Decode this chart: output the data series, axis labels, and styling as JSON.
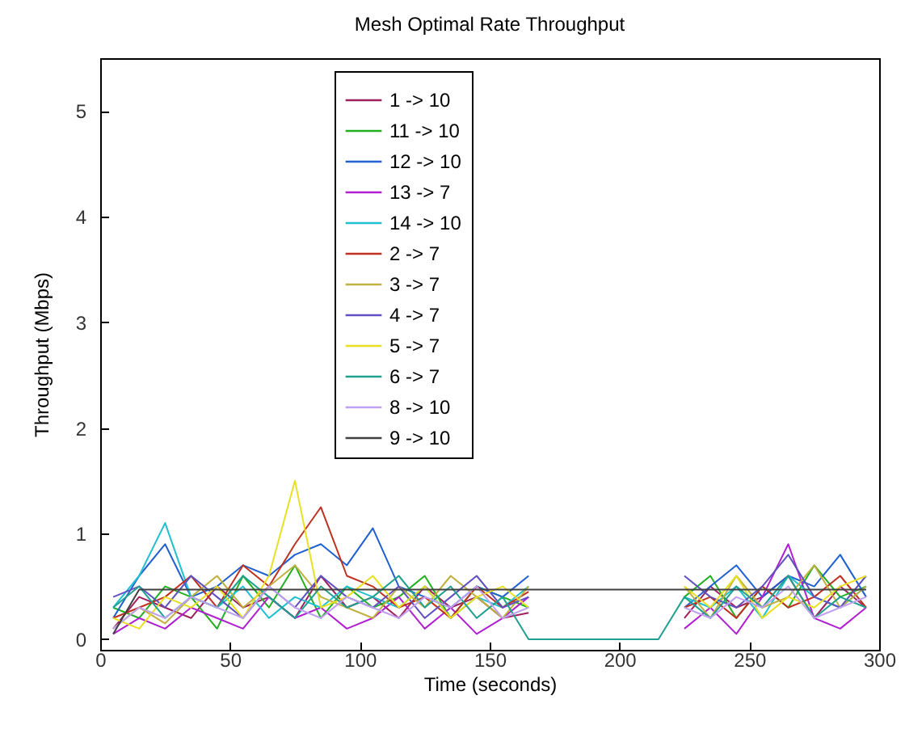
{
  "chart_data": {
    "type": "line",
    "title": "Mesh Optimal Rate Throughput",
    "xlabel": "Time (seconds)",
    "ylabel": "Throughput (Mbps)",
    "x": [
      5,
      15,
      25,
      35,
      45,
      55,
      65,
      75,
      85,
      95,
      105,
      115,
      125,
      135,
      145,
      155,
      165,
      175,
      185,
      195,
      205,
      215,
      225,
      235,
      245,
      255,
      265,
      275,
      285,
      295
    ],
    "series": [
      {
        "name": "1 -> 10",
        "color": "#a0205f",
        "values": [
          0.1,
          0.4,
          0.3,
          0.2,
          0.5,
          0.3,
          0.4,
          0.2,
          0.6,
          0.3,
          0.4,
          0.2,
          0.5,
          0.3,
          0.4,
          0.2,
          0.25,
          null,
          null,
          null,
          null,
          null,
          0.2,
          0.5,
          0.3,
          0.4,
          0.6,
          0.2,
          0.5,
          0.3
        ]
      },
      {
        "name": "11 -> 10",
        "color": "#20b020",
        "values": [
          0.3,
          0.2,
          0.5,
          0.4,
          0.1,
          0.6,
          0.3,
          0.7,
          0.2,
          0.5,
          0.3,
          0.4,
          0.6,
          0.2,
          0.5,
          0.4,
          0.3,
          null,
          null,
          null,
          null,
          null,
          0.4,
          0.6,
          0.2,
          0.5,
          0.3,
          0.7,
          0.4,
          0.5
        ]
      },
      {
        "name": "12 -> 10",
        "color": "#2060d0",
        "values": [
          0.2,
          0.6,
          0.9,
          0.4,
          0.5,
          0.7,
          0.6,
          0.8,
          0.9,
          0.7,
          1.05,
          0.5,
          0.4,
          0.3,
          0.5,
          0.4,
          0.6,
          null,
          null,
          null,
          null,
          null,
          0.3,
          0.5,
          0.7,
          0.4,
          0.6,
          0.5,
          0.8,
          0.4
        ]
      },
      {
        "name": "13 -> 7",
        "color": "#b020d0",
        "values": [
          0.05,
          0.2,
          0.1,
          0.3,
          0.2,
          0.1,
          0.4,
          0.2,
          0.3,
          0.1,
          0.2,
          0.4,
          0.1,
          0.3,
          0.05,
          0.2,
          0.4,
          null,
          null,
          null,
          null,
          null,
          0.1,
          0.3,
          0.05,
          0.4,
          0.9,
          0.2,
          0.1,
          0.3
        ]
      },
      {
        "name": "14 -> 10",
        "color": "#20c0d0",
        "values": [
          0.3,
          0.6,
          1.1,
          0.4,
          0.3,
          0.5,
          0.2,
          0.4,
          0.3,
          0.5,
          0.4,
          0.3,
          0.5,
          0.2,
          0.4,
          0.3,
          0.5,
          null,
          null,
          null,
          null,
          null,
          0.4,
          0.3,
          0.5,
          0.2,
          0.6,
          0.4,
          0.3,
          0.5
        ]
      },
      {
        "name": "2 -> 7",
        "color": "#c03020",
        "values": [
          0.2,
          0.3,
          0.4,
          0.6,
          0.3,
          0.7,
          0.5,
          0.9,
          1.25,
          0.6,
          0.5,
          0.3,
          0.4,
          0.2,
          0.5,
          0.3,
          0.45,
          null,
          null,
          null,
          null,
          null,
          0.3,
          0.4,
          0.2,
          0.5,
          0.3,
          0.4,
          0.6,
          0.3
        ]
      },
      {
        "name": "3 -> 7",
        "color": "#c0b040",
        "values": [
          0.1,
          0.3,
          0.15,
          0.4,
          0.6,
          0.3,
          0.5,
          0.7,
          0.4,
          0.3,
          0.2,
          0.5,
          0.3,
          0.6,
          0.4,
          0.2,
          0.5,
          null,
          null,
          null,
          null,
          null,
          0.5,
          0.2,
          0.6,
          0.3,
          0.4,
          0.7,
          0.3,
          0.5
        ]
      },
      {
        "name": "4 -> 7",
        "color": "#6050c0",
        "values": [
          0.4,
          0.5,
          0.3,
          0.6,
          0.4,
          0.2,
          0.5,
          0.3,
          0.6,
          0.4,
          0.3,
          0.5,
          0.2,
          0.4,
          0.6,
          0.3,
          0.4,
          null,
          null,
          null,
          null,
          null,
          0.6,
          0.4,
          0.3,
          0.5,
          0.8,
          0.4,
          0.3,
          0.6
        ]
      },
      {
        "name": "5 -> 7",
        "color": "#e8e020",
        "values": [
          0.2,
          0.1,
          0.4,
          0.3,
          0.5,
          0.2,
          0.6,
          1.5,
          0.3,
          0.4,
          0.6,
          0.3,
          0.5,
          0.2,
          0.4,
          0.5,
          0.3,
          null,
          null,
          null,
          null,
          null,
          0.5,
          0.3,
          0.6,
          0.2,
          0.4,
          0.3,
          0.5,
          0.6
        ]
      },
      {
        "name": "6 -> 7",
        "color": "#20a090",
        "values": [
          0.3,
          0.5,
          0.2,
          0.4,
          0.3,
          0.6,
          0.4,
          0.2,
          0.5,
          0.3,
          0.4,
          0.6,
          0.3,
          0.5,
          0.2,
          0.4,
          0,
          0,
          0,
          0,
          0,
          0,
          0.4,
          0.2,
          0.5,
          0.3,
          0.6,
          0.2,
          0.4,
          0.3
        ]
      },
      {
        "name": "8 -> 10",
        "color": "#c0a0f0",
        "values": [
          0.1,
          0.3,
          0.2,
          0.4,
          0.3,
          0.2,
          0.5,
          0.3,
          0.2,
          0.4,
          0.3,
          0.2,
          0.4,
          0.3,
          0.5,
          0.2,
          0.3,
          null,
          null,
          null,
          null,
          null,
          0.3,
          0.2,
          0.4,
          0.3,
          0.5,
          0.2,
          0.3,
          0.4
        ]
      },
      {
        "name": "9 -> 10",
        "color": "#404040",
        "values": [
          0.05,
          0.47,
          0.47,
          0.47,
          0.47,
          0.47,
          0.47,
          0.47,
          0.47,
          0.47,
          0.47,
          0.47,
          0.47,
          0.47,
          0.47,
          0.47,
          0.47,
          0.47,
          0.47,
          0.47,
          0.47,
          0.47,
          0.47,
          0.47,
          0.47,
          0.47,
          0.47,
          0.47,
          0.47,
          0.47
        ]
      }
    ],
    "xlim": [
      0,
      300
    ],
    "xticks": [
      0,
      50,
      100,
      150,
      200,
      250,
      300
    ],
    "ylim": [
      -0.1,
      5.5
    ],
    "yticks": [
      0,
      1,
      2,
      3,
      4,
      5
    ],
    "legend": "top",
    "grid": false,
    "marker": "none",
    "line_style": "solid"
  }
}
